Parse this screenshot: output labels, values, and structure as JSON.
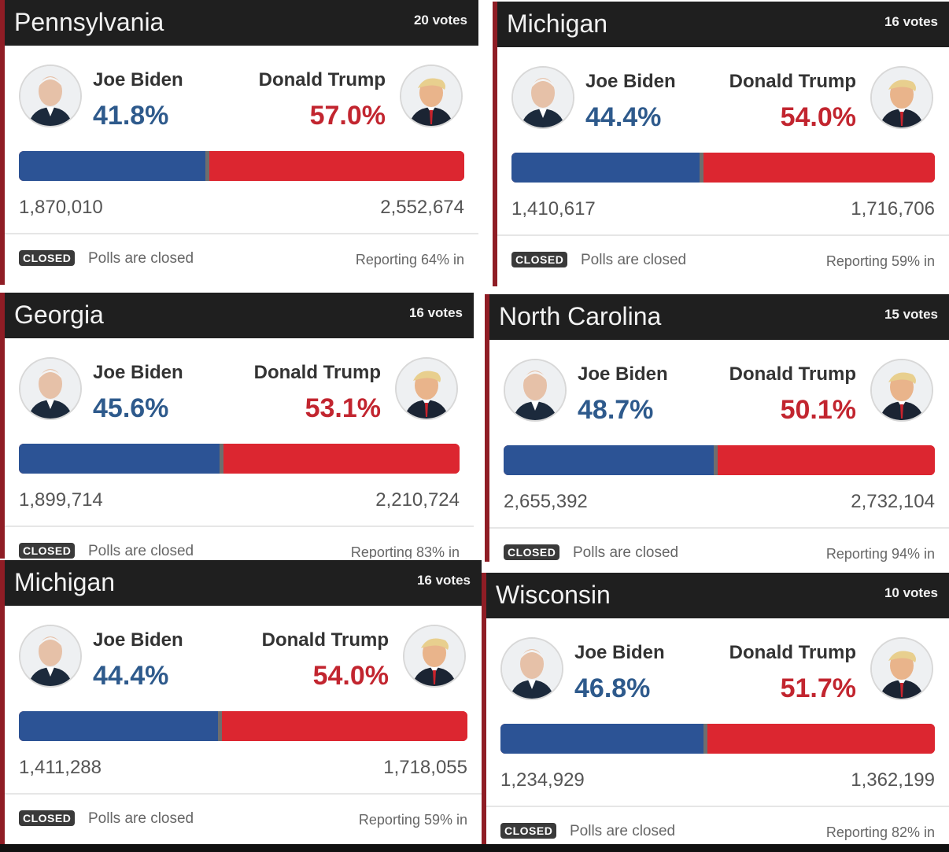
{
  "cards": [
    {
      "state": "Pennsylvania",
      "votes": "20 votes",
      "biden_name": "Joe Biden",
      "biden_pct": "41.8%",
      "trump_name": "Donald Trump",
      "trump_pct": "57.0%",
      "biden_count": "1,870,010",
      "trump_count": "2,552,674",
      "badge": "CLOSED",
      "polls": "Polls are closed",
      "reporting": "Reporting 64% in",
      "biden_share": 0.418
    },
    {
      "state": "Michigan",
      "votes": "16 votes",
      "biden_name": "Joe Biden",
      "biden_pct": "44.4%",
      "trump_name": "Donald Trump",
      "trump_pct": "54.0%",
      "biden_count": "1,410,617",
      "trump_count": "1,716,706",
      "badge": "CLOSED",
      "polls": "Polls are closed",
      "reporting": "Reporting 59% in",
      "biden_share": 0.444
    },
    {
      "state": "Georgia",
      "votes": "16 votes",
      "biden_name": "Joe Biden",
      "biden_pct": "45.6%",
      "trump_name": "Donald Trump",
      "trump_pct": "53.1%",
      "biden_count": "1,899,714",
      "trump_count": "2,210,724",
      "badge": "CLOSED",
      "polls": "Polls are closed",
      "reporting": "Reporting 83% in",
      "biden_share": 0.456
    },
    {
      "state": "North Carolina",
      "votes": "15 votes",
      "biden_name": "Joe Biden",
      "biden_pct": "48.7%",
      "trump_name": "Donald Trump",
      "trump_pct": "50.1%",
      "biden_count": "2,655,392",
      "trump_count": "2,732,104",
      "badge": "CLOSED",
      "polls": "Polls are closed",
      "reporting": "Reporting 94% in",
      "biden_share": 0.487
    },
    {
      "state": "Michigan",
      "votes": "16 votes",
      "biden_name": "Joe Biden",
      "biden_pct": "44.4%",
      "trump_name": "Donald Trump",
      "trump_pct": "54.0%",
      "biden_count": "1,411,288",
      "trump_count": "1,718,055",
      "badge": "CLOSED",
      "polls": "Polls are closed",
      "reporting": "Reporting 59% in",
      "biden_share": 0.444
    },
    {
      "state": "Wisconsin",
      "votes": "10 votes",
      "biden_name": "Joe Biden",
      "biden_pct": "46.8%",
      "trump_name": "Donald Trump",
      "trump_pct": "51.7%",
      "biden_count": "1,234,929",
      "trump_count": "1,362,199",
      "badge": "CLOSED",
      "polls": "Polls are closed",
      "reporting": "Reporting 82% in",
      "biden_share": 0.468
    }
  ],
  "colors": {
    "biden_blue": "#2c5395",
    "trump_red": "#dc2630",
    "header_dark": "#1f1f1f"
  },
  "icons": {
    "biden_avatar": "candidate-portrait-icon",
    "trump_avatar": "candidate-portrait-icon"
  }
}
